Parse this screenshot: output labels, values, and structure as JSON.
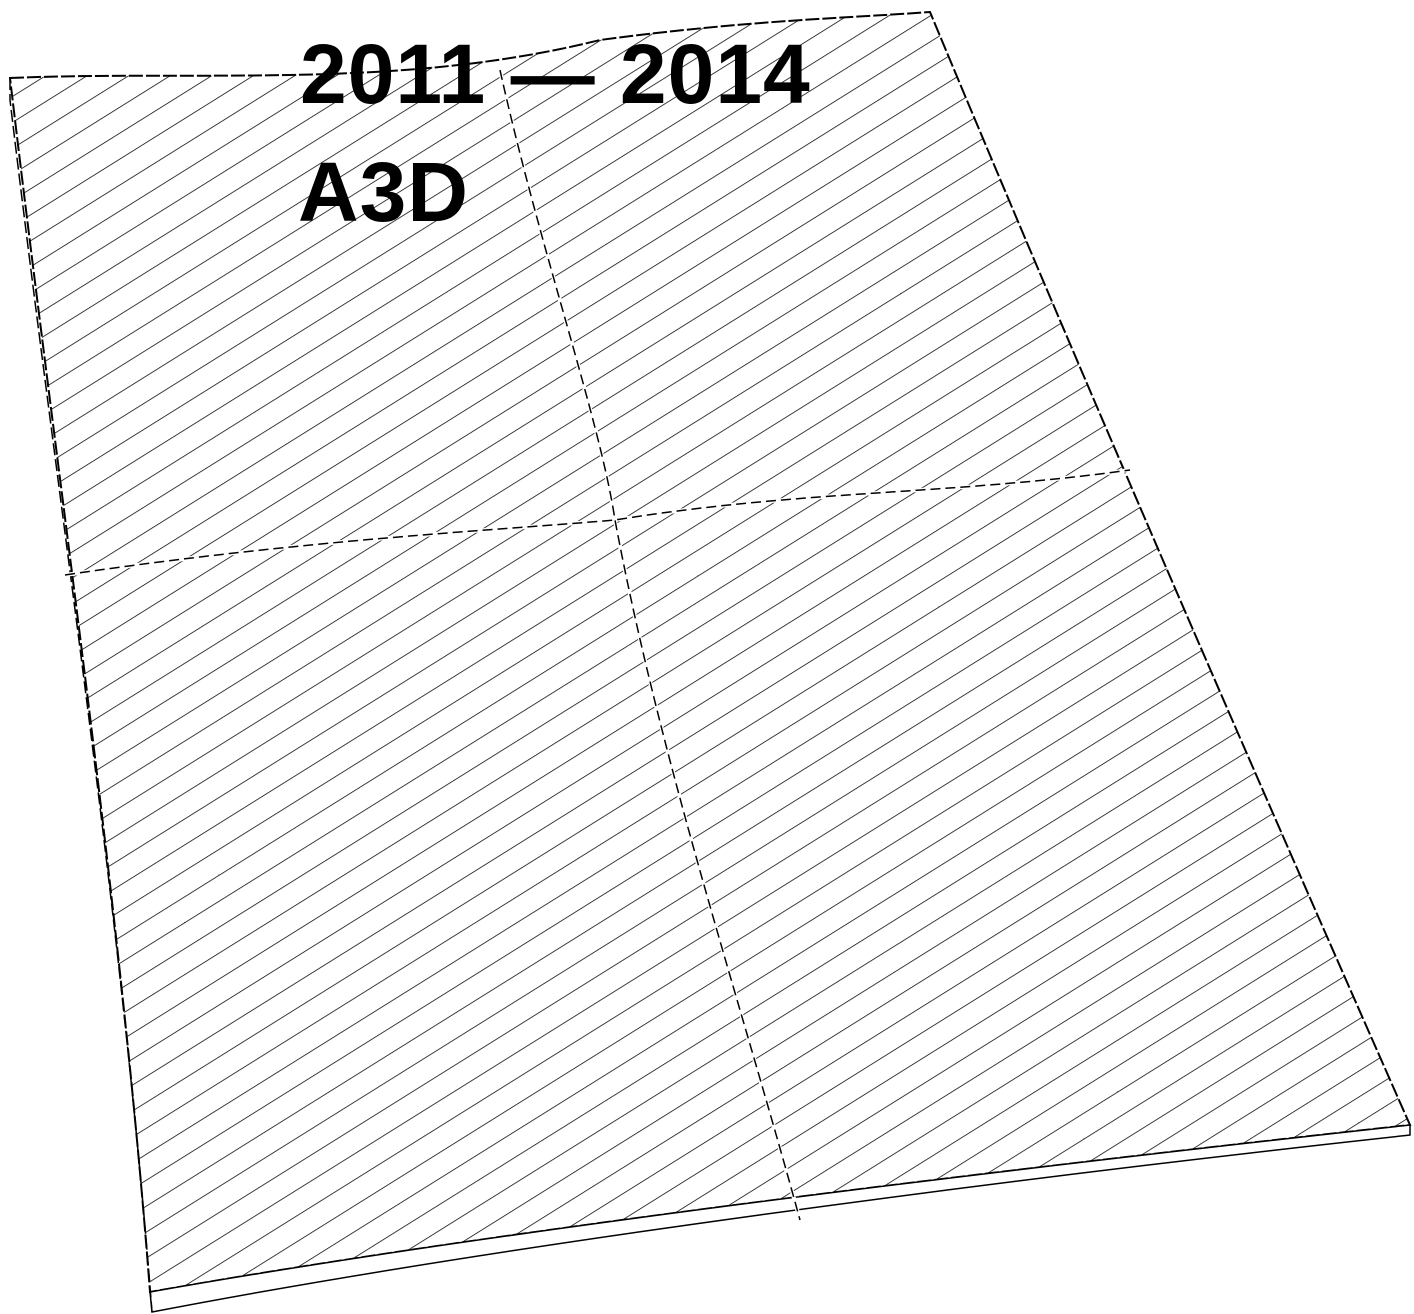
{
  "header": {
    "years": "2011 — 2014",
    "title": "A3D"
  }
}
